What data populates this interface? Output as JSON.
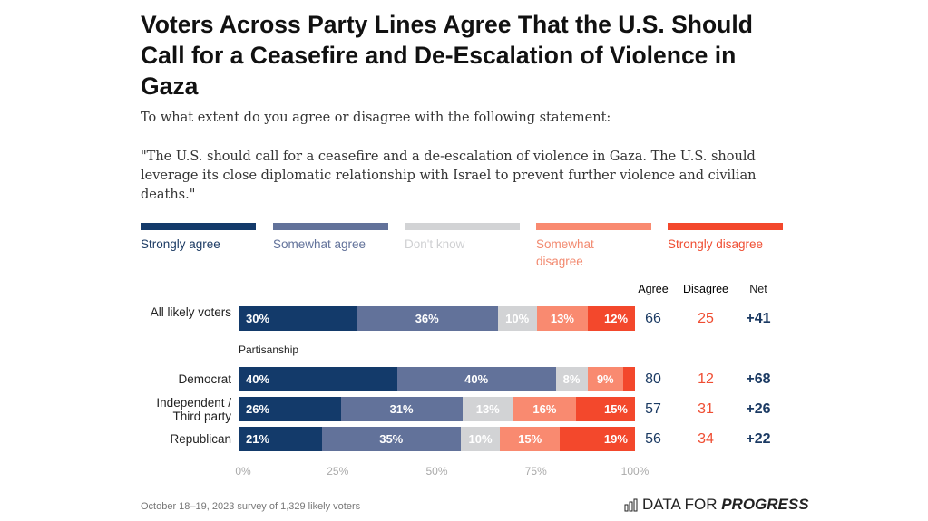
{
  "title": "Voters Across Party Lines Agree That the U.S. Should Call for a Ceasefire and De-Escalation of Violence in Gaza",
  "subtitle": "To what extent do you agree or disagree with the following statement:",
  "quote": "\"The U.S. should call for a ceasefire and a de-escalation of violence in Gaza. The U.S. should leverage its close diplomatic relationship with Israel to prevent further violence and civilian deaths.\"",
  "section_label": "Partisanship",
  "footer": "October 18–19, 2023 survey of 1,329 likely voters",
  "brand": {
    "prefix": "DATA FOR ",
    "bold": "PROGRESS"
  },
  "chart_data": {
    "type": "bar",
    "orientation": "horizontal-stacked",
    "legend": [
      "Strongly agree",
      "Somewhat agree",
      "Don't know",
      "Somewhat disagree",
      "Strongly disagree"
    ],
    "colors": [
      "#133a6a",
      "#62729a",
      "#d2d3d5",
      "#f98a70",
      "#f3482c"
    ],
    "legend_text_colors": [
      "#1b3a63",
      "#62729a",
      "#cfd0d2",
      "#f28a70",
      "#ef4d32"
    ],
    "columns": [
      "Agree",
      "Disagree",
      "Net"
    ],
    "categories": [
      "All likely voters",
      "Democrat",
      "Independent / Third party",
      "Republican"
    ],
    "series": [
      {
        "name": "Strongly agree",
        "values": [
          30,
          40,
          26,
          21
        ]
      },
      {
        "name": "Somewhat agree",
        "values": [
          36,
          40,
          31,
          35
        ]
      },
      {
        "name": "Don't know",
        "values": [
          10,
          8,
          13,
          10
        ]
      },
      {
        "name": "Somewhat disagree",
        "values": [
          13,
          9,
          16,
          15
        ]
      },
      {
        "name": "Strongly disagree",
        "values": [
          12,
          3,
          15,
          19
        ]
      }
    ],
    "agree": [
      66,
      80,
      57,
      56
    ],
    "disagree": [
      25,
      12,
      31,
      34
    ],
    "net": [
      "+41",
      "+68",
      "+26",
      "+22"
    ],
    "xticks": [
      "0%",
      "25%",
      "50%",
      "75%",
      "100%"
    ],
    "xlim": [
      0,
      100
    ]
  }
}
